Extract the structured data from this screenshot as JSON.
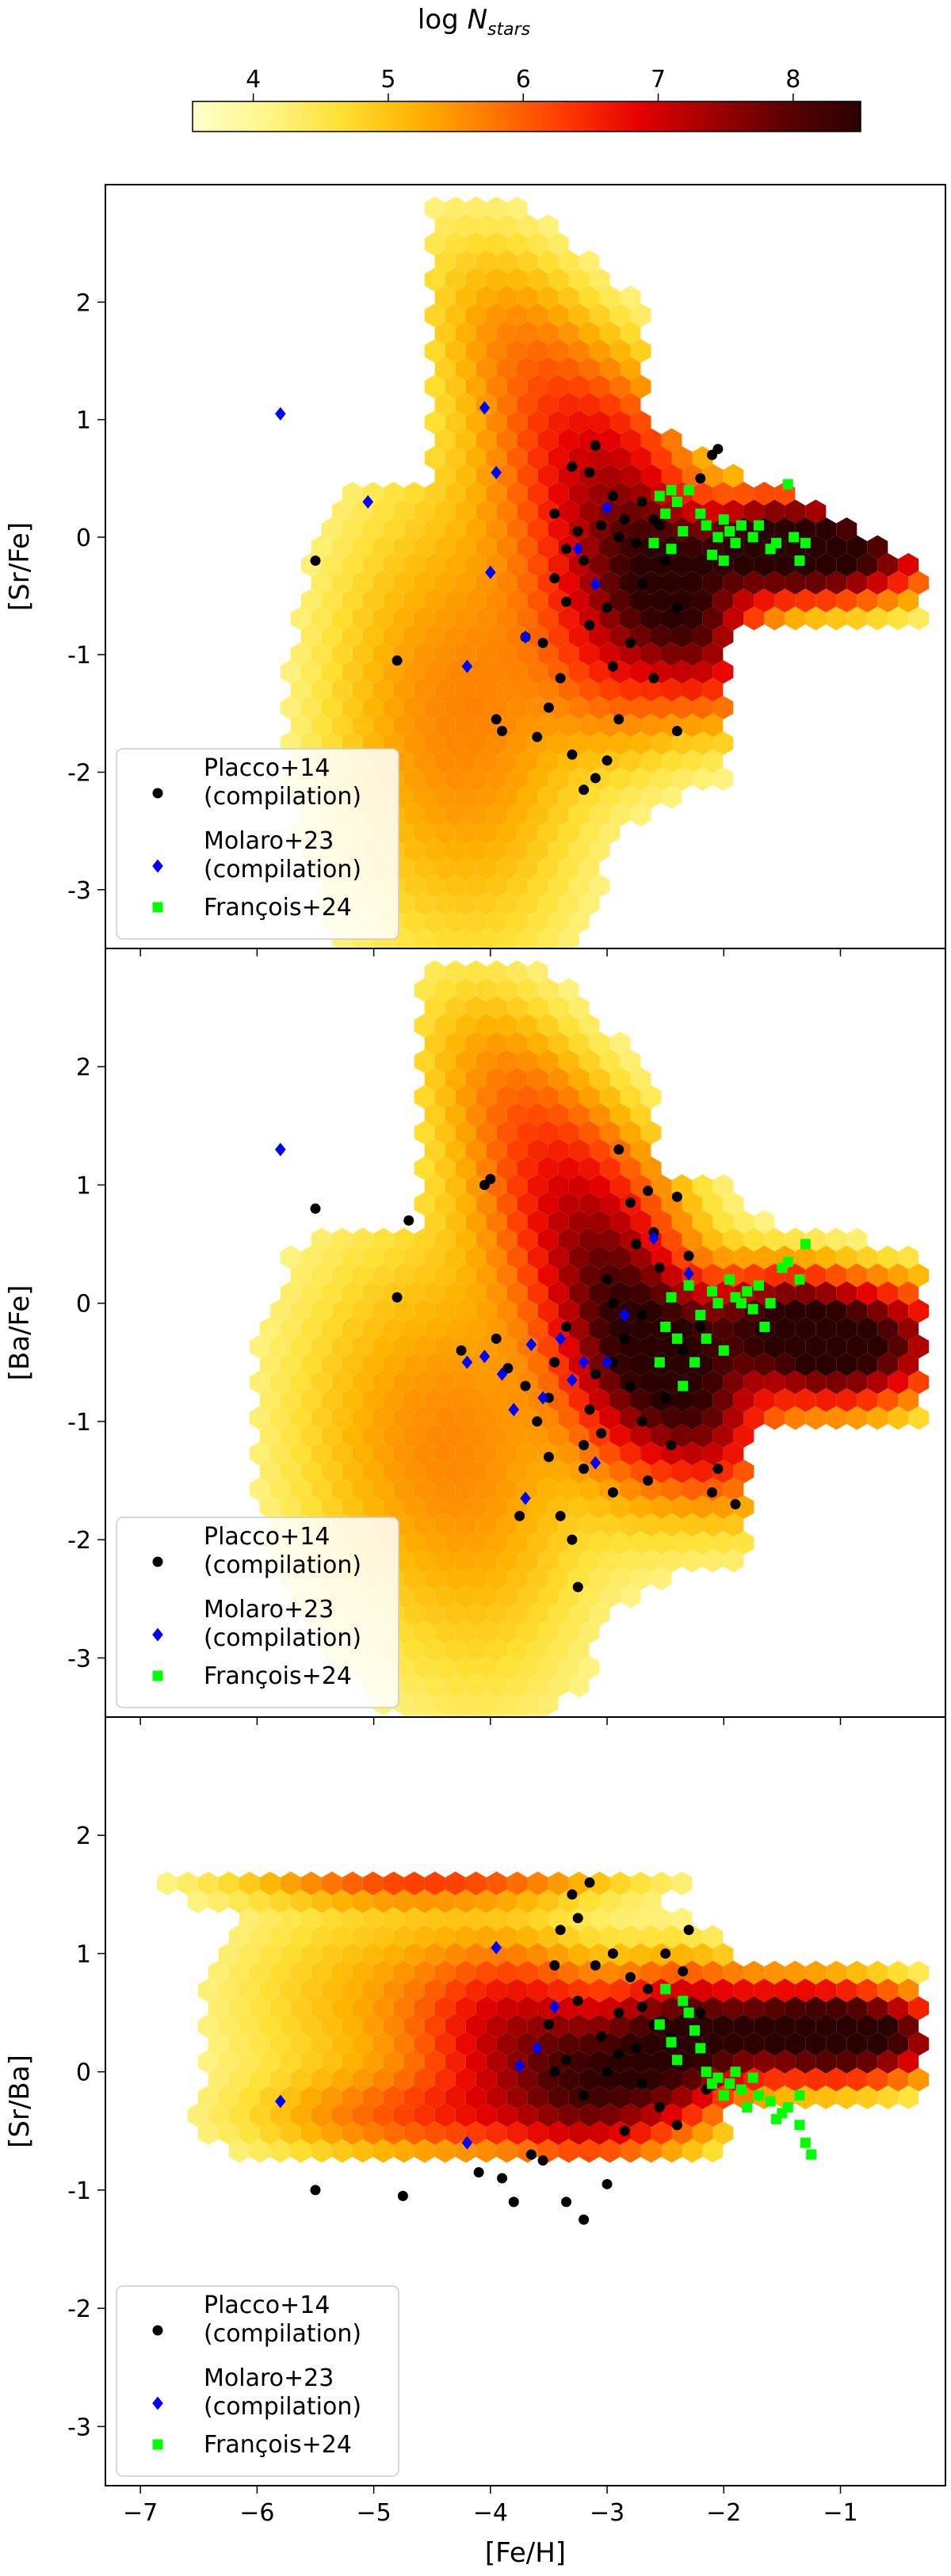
{
  "colorbar": {
    "label_prefix": "log ",
    "label_var": "N",
    "label_sub": "stars",
    "ticks": [
      4,
      5,
      6,
      7,
      8
    ],
    "range": [
      3.55,
      8.5
    ],
    "colormap": [
      "#ffffcc",
      "#fff58a",
      "#ffe033",
      "#ffb300",
      "#ff7a00",
      "#ff3b00",
      "#e60000",
      "#a00000",
      "#5a0000",
      "#2a0000"
    ]
  },
  "chart_data": [
    {
      "type": "scatter",
      "ylabel": "[Sr/Fe]",
      "xlabel": "",
      "xlim": [
        -7.3,
        -0.1
      ],
      "ylim": [
        -3.5,
        3.0
      ],
      "yticks": [
        -3,
        -2,
        -1,
        0,
        1,
        2
      ],
      "xticks": [
        -7,
        -6,
        -5,
        -4,
        -3,
        -2,
        -1
      ],
      "show_xtick_labels": false,
      "legend_position": "lower-left",
      "series": [
        {
          "name": "Placco+14\n(compilation)",
          "marker": "circle",
          "color": "#000000",
          "points": [
            [
              -5.5,
              -0.2
            ],
            [
              -4.8,
              -1.05
            ],
            [
              -3.95,
              -1.55
            ],
            [
              -3.9,
              -1.65
            ],
            [
              -3.7,
              -0.85
            ],
            [
              -3.55,
              -0.9
            ],
            [
              -3.45,
              -0.35
            ],
            [
              -3.3,
              0.6
            ],
            [
              -3.25,
              0.05
            ],
            [
              -3.15,
              0.55
            ],
            [
              -3.1,
              0.78
            ],
            [
              -2.95,
              0.35
            ],
            [
              -2.85,
              0.15
            ],
            [
              -2.7,
              0.3
            ],
            [
              -2.6,
              0.15
            ],
            [
              -2.5,
              -0.2
            ],
            [
              -2.4,
              -0.6
            ],
            [
              -2.2,
              0.5
            ],
            [
              -2.1,
              0.7
            ],
            [
              -2.05,
              0.75
            ],
            [
              -3.2,
              -0.2
            ],
            [
              -3.0,
              -0.6
            ],
            [
              -2.8,
              -0.9
            ],
            [
              -3.4,
              -1.2
            ],
            [
              -3.5,
              -1.45
            ],
            [
              -3.6,
              -1.7
            ],
            [
              -3.3,
              -1.85
            ],
            [
              -3.1,
              -2.05
            ],
            [
              -3.2,
              -2.15
            ],
            [
              -2.9,
              -1.55
            ],
            [
              -2.6,
              -1.2
            ],
            [
              -2.4,
              -1.65
            ],
            [
              -3.05,
              0.1
            ],
            [
              -2.9,
              0.0
            ],
            [
              -2.75,
              -0.05
            ],
            [
              -2.55,
              0.1
            ],
            [
              -3.35,
              -0.55
            ],
            [
              -3.15,
              -0.75
            ],
            [
              -2.95,
              -1.1
            ],
            [
              -2.7,
              -0.4
            ],
            [
              -3.0,
              -1.9
            ],
            [
              -3.35,
              -0.1
            ],
            [
              -3.45,
              0.2
            ]
          ]
        },
        {
          "name": "Molaro+23\n(compilation)",
          "marker": "diamond",
          "color": "#0000ff",
          "points": [
            [
              -5.8,
              1.05
            ],
            [
              -5.05,
              0.3
            ],
            [
              -4.05,
              1.1
            ],
            [
              -3.95,
              0.55
            ],
            [
              -4.2,
              -1.1
            ],
            [
              -4.0,
              -0.3
            ],
            [
              -3.7,
              -0.85
            ],
            [
              -3.25,
              -0.1
            ],
            [
              -3.0,
              0.25
            ],
            [
              -3.1,
              -0.4
            ]
          ]
        },
        {
          "name": "François+24",
          "marker": "square",
          "color": "#00ff00",
          "points": [
            [
              -2.55,
              0.35
            ],
            [
              -2.5,
              0.2
            ],
            [
              -2.45,
              -0.1
            ],
            [
              -2.4,
              0.3
            ],
            [
              -2.35,
              0.05
            ],
            [
              -2.3,
              0.4
            ],
            [
              -2.2,
              0.2
            ],
            [
              -2.15,
              0.1
            ],
            [
              -2.1,
              -0.15
            ],
            [
              -2.05,
              0.0
            ],
            [
              -2.0,
              0.15
            ],
            [
              -1.95,
              0.05
            ],
            [
              -1.9,
              -0.05
            ],
            [
              -1.85,
              0.1
            ],
            [
              -1.75,
              0.0
            ],
            [
              -1.7,
              0.1
            ],
            [
              -1.6,
              -0.1
            ],
            [
              -1.55,
              -0.05
            ],
            [
              -1.45,
              0.45
            ],
            [
              -1.4,
              0.0
            ],
            [
              -1.35,
              -0.2
            ],
            [
              -1.3,
              -0.05
            ],
            [
              -2.6,
              -0.05
            ],
            [
              -2.45,
              0.4
            ],
            [
              -2.0,
              -0.2
            ]
          ]
        }
      ]
    },
    {
      "type": "scatter",
      "ylabel": "[Ba/Fe]",
      "xlabel": "",
      "xlim": [
        -7.3,
        -0.1
      ],
      "ylim": [
        -3.5,
        3.0
      ],
      "yticks": [
        -3,
        -2,
        -1,
        0,
        1,
        2
      ],
      "xticks": [
        -7,
        -6,
        -5,
        -4,
        -3,
        -2,
        -1
      ],
      "show_xtick_labels": false,
      "legend_position": "lower-left",
      "series": [
        {
          "name": "Placco+14\n(compilation)",
          "marker": "circle",
          "color": "#000000",
          "points": [
            [
              -5.5,
              0.8
            ],
            [
              -4.8,
              0.05
            ],
            [
              -4.7,
              0.7
            ],
            [
              -4.0,
              1.05
            ],
            [
              -4.05,
              1.0
            ],
            [
              -3.95,
              -0.3
            ],
            [
              -3.85,
              -0.55
            ],
            [
              -3.7,
              -0.7
            ],
            [
              -3.6,
              -1.0
            ],
            [
              -3.5,
              -1.3
            ],
            [
              -3.45,
              -0.5
            ],
            [
              -3.4,
              -1.8
            ],
            [
              -3.3,
              -2.0
            ],
            [
              -3.25,
              -2.4
            ],
            [
              -3.2,
              -1.4
            ],
            [
              -3.15,
              -0.9
            ],
            [
              -3.1,
              -0.6
            ],
            [
              -3.05,
              -1.1
            ],
            [
              -3.0,
              0.2
            ],
            [
              -2.95,
              0.0
            ],
            [
              -2.9,
              1.3
            ],
            [
              -2.85,
              -0.3
            ],
            [
              -2.8,
              -0.7
            ],
            [
              -2.75,
              0.5
            ],
            [
              -2.7,
              -1.0
            ],
            [
              -2.65,
              -1.5
            ],
            [
              -2.6,
              0.6
            ],
            [
              -2.55,
              0.3
            ],
            [
              -2.5,
              -0.8
            ],
            [
              -2.45,
              -1.2
            ],
            [
              -2.4,
              0.9
            ],
            [
              -2.35,
              -0.4
            ],
            [
              -2.3,
              0.4
            ],
            [
              -2.2,
              -0.2
            ],
            [
              -2.1,
              -1.6
            ],
            [
              -2.05,
              -1.4
            ],
            [
              -1.9,
              -1.7
            ],
            [
              -2.95,
              -0.5
            ],
            [
              -3.35,
              -0.2
            ],
            [
              -3.5,
              -0.8
            ],
            [
              -4.25,
              -0.4
            ],
            [
              -3.75,
              -1.8
            ],
            [
              -2.65,
              0.95
            ],
            [
              -2.8,
              0.85
            ],
            [
              -3.2,
              -1.2
            ],
            [
              -2.95,
              -1.6
            ],
            [
              -2.7,
              -0.1
            ]
          ]
        },
        {
          "name": "Molaro+23\n(compilation)",
          "marker": "diamond",
          "color": "#0000ff",
          "points": [
            [
              -5.8,
              1.3
            ],
            [
              -4.2,
              -0.5
            ],
            [
              -4.05,
              -0.45
            ],
            [
              -3.9,
              -0.6
            ],
            [
              -3.8,
              -0.9
            ],
            [
              -3.65,
              -0.35
            ],
            [
              -3.55,
              -0.8
            ],
            [
              -3.4,
              -0.3
            ],
            [
              -3.3,
              -0.65
            ],
            [
              -3.1,
              -1.35
            ],
            [
              -3.0,
              -0.5
            ],
            [
              -2.85,
              -0.1
            ],
            [
              -3.7,
              -1.65
            ],
            [
              -2.6,
              0.55
            ],
            [
              -2.45,
              0.05
            ],
            [
              -2.3,
              0.25
            ],
            [
              -3.2,
              -0.5
            ]
          ]
        },
        {
          "name": "François+24",
          "marker": "square",
          "color": "#00ff00",
          "points": [
            [
              -2.55,
              -0.5
            ],
            [
              -2.5,
              -0.2
            ],
            [
              -2.45,
              0.05
            ],
            [
              -2.4,
              -0.3
            ],
            [
              -2.3,
              0.15
            ],
            [
              -2.2,
              -0.1
            ],
            [
              -2.15,
              -0.3
            ],
            [
              -2.1,
              0.1
            ],
            [
              -2.05,
              0.0
            ],
            [
              -2.0,
              -0.4
            ],
            [
              -1.95,
              0.2
            ],
            [
              -1.9,
              0.05
            ],
            [
              -1.85,
              0.0
            ],
            [
              -1.8,
              0.1
            ],
            [
              -1.75,
              -0.05
            ],
            [
              -1.7,
              0.15
            ],
            [
              -1.6,
              0.0
            ],
            [
              -1.5,
              0.3
            ],
            [
              -1.45,
              0.35
            ],
            [
              -1.35,
              0.2
            ],
            [
              -1.3,
              0.5
            ],
            [
              -2.35,
              -0.7
            ],
            [
              -2.25,
              -0.5
            ],
            [
              -1.65,
              -0.2
            ]
          ]
        }
      ]
    },
    {
      "type": "scatter",
      "ylabel": "[Sr/Ba]",
      "xlabel": "[Fe/H]",
      "xlim": [
        -7.3,
        -0.1
      ],
      "ylim": [
        -3.5,
        3.0
      ],
      "yticks": [
        -3,
        -2,
        -1,
        0,
        1,
        2
      ],
      "xticks": [
        -7,
        -6,
        -5,
        -4,
        -3,
        -2,
        -1
      ],
      "show_xtick_labels": true,
      "legend_position": "lower-left",
      "series": [
        {
          "name": "Placco+14\n(compilation)",
          "marker": "circle",
          "color": "#000000",
          "points": [
            [
              -5.5,
              -1.0
            ],
            [
              -4.75,
              -1.05
            ],
            [
              -4.1,
              -0.85
            ],
            [
              -3.9,
              -0.9
            ],
            [
              -3.8,
              -1.1
            ],
            [
              -3.65,
              -0.7
            ],
            [
              -3.5,
              0.4
            ],
            [
              -3.45,
              0.9
            ],
            [
              -3.4,
              1.2
            ],
            [
              -3.35,
              0.1
            ],
            [
              -3.3,
              1.5
            ],
            [
              -3.25,
              0.6
            ],
            [
              -3.2,
              -0.2
            ],
            [
              -3.15,
              1.6
            ],
            [
              -3.1,
              0.9
            ],
            [
              -3.05,
              0.3
            ],
            [
              -3.0,
              -0.95
            ],
            [
              -2.95,
              1.0
            ],
            [
              -2.9,
              0.5
            ],
            [
              -2.85,
              -0.5
            ],
            [
              -2.8,
              0.8
            ],
            [
              -2.75,
              0.2
            ],
            [
              -2.7,
              -0.1
            ],
            [
              -2.65,
              0.7
            ],
            [
              -2.6,
              0.4
            ],
            [
              -2.55,
              -0.3
            ],
            [
              -2.5,
              1.0
            ],
            [
              -2.45,
              0.3
            ],
            [
              -2.4,
              -0.45
            ],
            [
              -2.35,
              0.85
            ],
            [
              -2.3,
              1.2
            ],
            [
              -2.2,
              0.5
            ],
            [
              -2.15,
              -0.15
            ],
            [
              -3.2,
              -1.25
            ],
            [
              -3.35,
              -1.1
            ],
            [
              -3.55,
              -0.75
            ],
            [
              -3.25,
              1.3
            ],
            [
              -3.0,
              0.0
            ],
            [
              -2.9,
              0.15
            ],
            [
              -2.7,
              0.55
            ],
            [
              -3.45,
              0.0
            ]
          ]
        },
        {
          "name": "Molaro+23\n(compilation)",
          "marker": "diamond",
          "color": "#0000ff",
          "points": [
            [
              -5.8,
              -0.25
            ],
            [
              -4.2,
              -0.6
            ],
            [
              -3.95,
              1.05
            ],
            [
              -3.75,
              0.05
            ],
            [
              -3.6,
              0.2
            ],
            [
              -3.45,
              0.55
            ]
          ]
        },
        {
          "name": "François+24",
          "marker": "square",
          "color": "#00ff00",
          "points": [
            [
              -2.55,
              0.4
            ],
            [
              -2.5,
              0.7
            ],
            [
              -2.45,
              0.25
            ],
            [
              -2.4,
              0.1
            ],
            [
              -2.3,
              0.5
            ],
            [
              -2.25,
              0.35
            ],
            [
              -2.2,
              0.2
            ],
            [
              -2.15,
              0.0
            ],
            [
              -2.1,
              -0.1
            ],
            [
              -2.05,
              -0.05
            ],
            [
              -2.0,
              -0.2
            ],
            [
              -1.95,
              -0.1
            ],
            [
              -1.9,
              0.0
            ],
            [
              -1.85,
              -0.15
            ],
            [
              -1.8,
              -0.3
            ],
            [
              -1.75,
              -0.05
            ],
            [
              -1.7,
              -0.2
            ],
            [
              -1.6,
              -0.25
            ],
            [
              -1.55,
              -0.4
            ],
            [
              -1.5,
              -0.35
            ],
            [
              -1.45,
              -0.3
            ],
            [
              -1.35,
              -0.2
            ],
            [
              -1.3,
              -0.6
            ],
            [
              -1.25,
              -0.7
            ],
            [
              -1.35,
              -0.45
            ],
            [
              -2.35,
              0.6
            ]
          ]
        }
      ]
    }
  ]
}
